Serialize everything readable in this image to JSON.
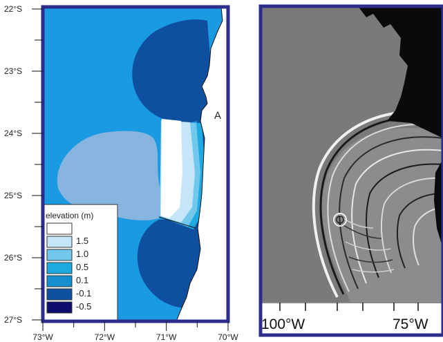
{
  "map": {
    "lat_labels": [
      "22°S",
      "23°S",
      "24°S",
      "25°S",
      "26°S",
      "27°S"
    ],
    "lon_labels": [
      "73°W",
      "72°W",
      "71°W",
      "70°W"
    ],
    "point_label": "A"
  },
  "legend": {
    "title": "elevation (m)",
    "entries": [
      {
        "label": "1.5",
        "color": "#ffffff"
      },
      {
        "label": "1.0",
        "color": "#c4e6f8"
      },
      {
        "label": "0.5",
        "color": "#72c8ec"
      },
      {
        "label": "0.1",
        "color": "#1ea9e1"
      },
      {
        "label": "-0.1",
        "color": "#158fd0"
      },
      {
        "label": "-0.5",
        "color": "#0f4fa0"
      },
      {
        "label": "",
        "color": "#0d0d6e"
      }
    ]
  },
  "colors": {
    "frame": "#2d2d8c",
    "ocean": "#1a9ae0",
    "depression": "#0f4fa0",
    "uplift_outer": "#88b4e0",
    "land": "#ffffff",
    "sim_background": "#7a7a7a"
  },
  "sim": {
    "lon_labels": [
      "100°W",
      "75°W"
    ]
  }
}
